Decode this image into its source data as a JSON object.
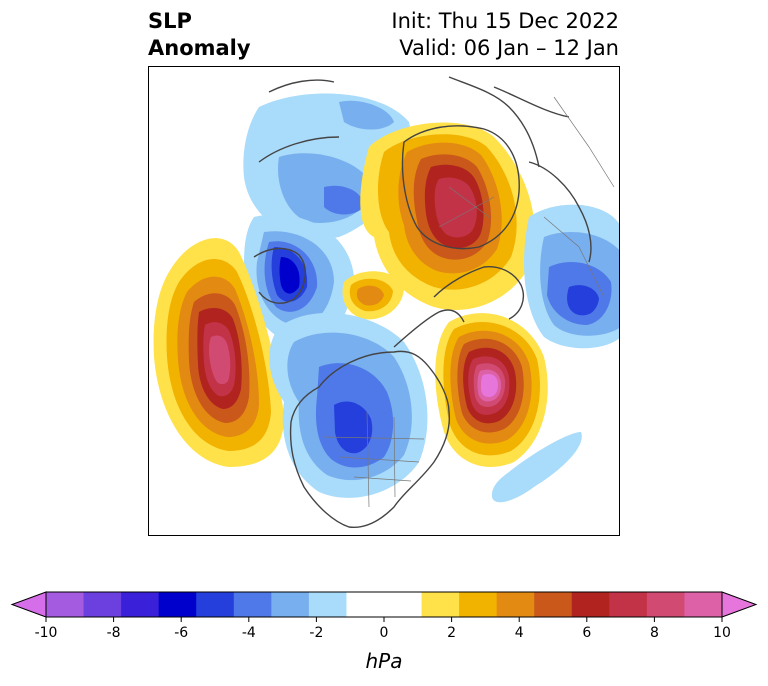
{
  "title": {
    "left_line1": "SLP",
    "left_line2": "Anomaly",
    "right_line1": "Init: Thu 15 Dec 2022",
    "right_line2": "Valid: 06 Jan – 12 Jan"
  },
  "colorbar": {
    "units": "hPa",
    "ticks": [
      "-10",
      "-8",
      "-6",
      "-4",
      "-2",
      "0",
      "2",
      "4",
      "6",
      "8",
      "10"
    ],
    "min": -10,
    "max": 10,
    "extend": "both",
    "colors": [
      "#d56ee8",
      "#a45be0",
      "#6b40df",
      "#3a20d8",
      "#0000cc",
      "#243fdc",
      "#4f79e8",
      "#78afef",
      "#a9dbfa",
      "#ffffff",
      "#ffffff",
      "#ffe14a",
      "#f2b200",
      "#e38a12",
      "#c9581a",
      "#b1231f",
      "#c23348",
      "#d04a72",
      "#dd61a6",
      "#e675dc"
    ]
  },
  "anomalies": [
    {
      "name": "pacific-high",
      "peak_hPa": 8
    },
    {
      "name": "arctic-high",
      "peak_hPa": 8
    },
    {
      "name": "atlantic-high",
      "peak_hPa": 10
    },
    {
      "name": "polar-high-small",
      "peak_hPa": 4
    },
    {
      "name": "siberia-low",
      "peak_hPa": -6
    },
    {
      "name": "north-america-low",
      "peak_hPa": -4
    },
    {
      "name": "europe-low",
      "peak_hPa": -5
    },
    {
      "name": "kamchatka-low",
      "peak_hPa": -3
    },
    {
      "name": "subtropical-atlantic-low",
      "peak_hPa": -1
    }
  ]
}
